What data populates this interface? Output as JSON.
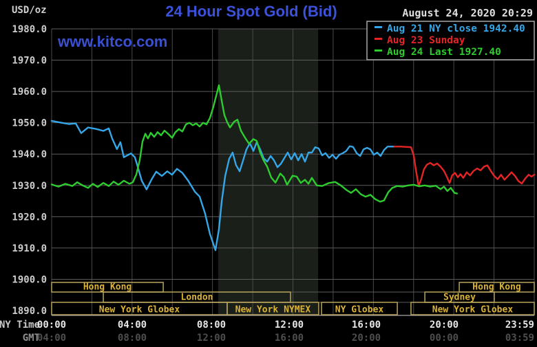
{
  "header": {
    "units_label": "USD/oz",
    "title": "24 Hour Spot Gold (Bid)",
    "datetime": "August 24, 2020 20:29",
    "watermark": "www.kitco.com"
  },
  "legend": {
    "items": [
      {
        "dash_color": "#35a7e8",
        "label": "Aug 21 NY close 1942.40"
      },
      {
        "dash_color": "#e52525",
        "label": "Aug 23 Sunday"
      },
      {
        "dash_color": "#2ecc2e",
        "label": "Aug 24 Last 1927.40"
      }
    ]
  },
  "axes": {
    "ny_time_label": "NY Time",
    "gmt_label": "GMT",
    "y_ticks": [
      "1980.0",
      "1970.0",
      "1960.0",
      "1950.0",
      "1940.0",
      "1930.0",
      "1920.0",
      "1910.0",
      "1900.0",
      "1890.0"
    ],
    "x_ticks": [
      {
        "ny": "00:00",
        "gmt": "04:00",
        "hour": 0
      },
      {
        "ny": "04:00",
        "gmt": "08:00",
        "hour": 4
      },
      {
        "ny": "08:00",
        "gmt": "12:00",
        "hour": 8
      },
      {
        "ny": "12:00",
        "gmt": "16:00",
        "hour": 12
      },
      {
        "ny": "16:00",
        "gmt": "20:00",
        "hour": 16
      },
      {
        "ny": "20:00",
        "gmt": "00:00",
        "hour": 20
      },
      {
        "ny": "23:59",
        "gmt": "03:59",
        "hour": 23.98
      }
    ]
  },
  "sessions": [
    {
      "row": 1,
      "label": "Hong Kong",
      "start_h": 0.0,
      "end_h": 5.55
    },
    {
      "row": 1,
      "label": "Hong Kong",
      "start_h": 20.27,
      "end_h": 24.0
    },
    {
      "row": 2,
      "label": "London",
      "start_h": 2.57,
      "end_h": 11.88
    },
    {
      "row": 2,
      "label": "Sydney",
      "start_h": 18.56,
      "end_h": 22.01
    },
    {
      "row": 3,
      "label": "New York Globex",
      "start_h": 0.0,
      "end_h": 8.73
    },
    {
      "row": 3,
      "label": "New York NYMEX",
      "start_h": 8.73,
      "end_h": 13.28
    },
    {
      "row": 3,
      "label": "NY Globex",
      "start_h": 13.42,
      "end_h": 17.19
    },
    {
      "row": 3,
      "label": "New York Globex",
      "start_h": 17.87,
      "end_h": 24.0
    }
  ],
  "chart_data": {
    "type": "line",
    "title": "24 Hour Spot Gold (Bid)",
    "x_unit": "NY time, hours 0-24",
    "xlim": [
      0,
      24
    ],
    "ylim": [
      1890,
      1980
    ],
    "grid": {
      "x_step_hours": 2,
      "y_step_usd": 10
    },
    "shaded_band_hours": [
      8.28,
      13.25
    ],
    "series": [
      {
        "name": "Aug 21 NY close",
        "close": 1942.4,
        "color": "#35a7e8",
        "points": [
          [
            0,
            1950.6
          ],
          [
            0.5,
            1950.0
          ],
          [
            0.86,
            1949.6
          ],
          [
            1.2,
            1949.8
          ],
          [
            1.47,
            1946.7
          ],
          [
            1.81,
            1948.5
          ],
          [
            2.23,
            1948.0
          ],
          [
            2.57,
            1947.4
          ],
          [
            2.84,
            1948.2
          ],
          [
            3.01,
            1945.0
          ],
          [
            3.25,
            1941.6
          ],
          [
            3.42,
            1943.8
          ],
          [
            3.59,
            1939.0
          ],
          [
            3.94,
            1940.2
          ],
          [
            4.14,
            1939.0
          ],
          [
            4.28,
            1936.0
          ],
          [
            4.48,
            1931.5
          ],
          [
            4.72,
            1928.7
          ],
          [
            4.96,
            1931.8
          ],
          [
            5.2,
            1934.4
          ],
          [
            5.48,
            1933.0
          ],
          [
            5.75,
            1934.5
          ],
          [
            5.99,
            1933.4
          ],
          [
            6.23,
            1935.3
          ],
          [
            6.5,
            1934.0
          ],
          [
            6.78,
            1931.6
          ],
          [
            7.12,
            1928.0
          ],
          [
            7.36,
            1926.4
          ],
          [
            7.63,
            1921.0
          ],
          [
            7.87,
            1914.5
          ],
          [
            8.15,
            1909.3
          ],
          [
            8.32,
            1916.0
          ],
          [
            8.46,
            1925.0
          ],
          [
            8.63,
            1933.0
          ],
          [
            8.83,
            1938.5
          ],
          [
            9.0,
            1940.5
          ],
          [
            9.17,
            1936.5
          ],
          [
            9.35,
            1934.5
          ],
          [
            9.52,
            1938.0
          ],
          [
            9.69,
            1941.5
          ],
          [
            9.86,
            1943.5
          ],
          [
            10.03,
            1941.0
          ],
          [
            10.2,
            1943.8
          ],
          [
            10.37,
            1941.5
          ],
          [
            10.54,
            1938.7
          ],
          [
            10.72,
            1937.6
          ],
          [
            10.89,
            1939.4
          ],
          [
            11.06,
            1938.0
          ],
          [
            11.23,
            1935.8
          ],
          [
            11.4,
            1936.9
          ],
          [
            11.57,
            1938.7
          ],
          [
            11.74,
            1940.5
          ],
          [
            11.91,
            1938.3
          ],
          [
            12.09,
            1940.3
          ],
          [
            12.26,
            1938.0
          ],
          [
            12.43,
            1940.0
          ],
          [
            12.6,
            1937.6
          ],
          [
            12.77,
            1940.5
          ],
          [
            12.94,
            1940.5
          ],
          [
            13.11,
            1942.2
          ],
          [
            13.28,
            1941.8
          ],
          [
            13.45,
            1939.6
          ],
          [
            13.62,
            1940.3
          ],
          [
            13.8,
            1938.8
          ],
          [
            13.97,
            1939.8
          ],
          [
            14.14,
            1938.5
          ],
          [
            14.31,
            1939.8
          ],
          [
            14.48,
            1940.3
          ],
          [
            14.65,
            1941.0
          ],
          [
            14.82,
            1942.5
          ],
          [
            14.99,
            1942.3
          ],
          [
            15.17,
            1940.3
          ],
          [
            15.34,
            1939.4
          ],
          [
            15.51,
            1941.5
          ],
          [
            15.68,
            1942.0
          ],
          [
            15.85,
            1941.5
          ],
          [
            16.02,
            1939.8
          ],
          [
            16.19,
            1940.5
          ],
          [
            16.36,
            1939.4
          ],
          [
            16.53,
            1941.3
          ],
          [
            16.71,
            1942.4
          ],
          [
            16.88,
            1942.4
          ],
          [
            17.05,
            1942.4
          ]
        ]
      },
      {
        "name": "Aug 23 Sunday",
        "color": "#e52525",
        "points": [
          [
            17.05,
            1942.4
          ],
          [
            17.36,
            1942.4
          ],
          [
            17.63,
            1942.3
          ],
          [
            17.87,
            1942.2
          ],
          [
            18.01,
            1939.5
          ],
          [
            18.11,
            1935.0
          ],
          [
            18.25,
            1929.8
          ],
          [
            18.38,
            1932.0
          ],
          [
            18.52,
            1935.2
          ],
          [
            18.66,
            1936.6
          ],
          [
            18.83,
            1937.2
          ],
          [
            19.0,
            1936.4
          ],
          [
            19.17,
            1937.0
          ],
          [
            19.34,
            1936.0
          ],
          [
            19.51,
            1934.6
          ],
          [
            19.65,
            1932.8
          ],
          [
            19.79,
            1930.8
          ],
          [
            19.92,
            1933.2
          ],
          [
            20.06,
            1934.0
          ],
          [
            20.2,
            1932.6
          ],
          [
            20.33,
            1933.6
          ],
          [
            20.47,
            1932.4
          ],
          [
            20.64,
            1934.2
          ],
          [
            20.81,
            1933.2
          ],
          [
            20.98,
            1934.6
          ],
          [
            21.16,
            1935.4
          ],
          [
            21.33,
            1934.8
          ],
          [
            21.5,
            1936.0
          ],
          [
            21.67,
            1936.4
          ],
          [
            21.84,
            1934.6
          ],
          [
            22.01,
            1933.0
          ],
          [
            22.18,
            1932.0
          ],
          [
            22.35,
            1933.4
          ],
          [
            22.52,
            1931.8
          ],
          [
            22.7,
            1933.0
          ],
          [
            22.87,
            1934.2
          ],
          [
            23.04,
            1933.0
          ],
          [
            23.21,
            1931.4
          ],
          [
            23.38,
            1930.6
          ],
          [
            23.55,
            1932.2
          ],
          [
            23.72,
            1933.4
          ],
          [
            23.86,
            1932.8
          ],
          [
            24.0,
            1933.4
          ]
        ]
      },
      {
        "name": "Aug 24",
        "last": 1927.4,
        "color": "#2ecc2e",
        "points": [
          [
            0,
            1930.3
          ],
          [
            0.34,
            1929.6
          ],
          [
            0.68,
            1930.5
          ],
          [
            1.03,
            1929.8
          ],
          [
            1.27,
            1931.0
          ],
          [
            1.54,
            1930.0
          ],
          [
            1.81,
            1929.2
          ],
          [
            2.05,
            1930.5
          ],
          [
            2.29,
            1929.5
          ],
          [
            2.57,
            1930.8
          ],
          [
            2.84,
            1929.8
          ],
          [
            3.08,
            1931.2
          ],
          [
            3.32,
            1930.2
          ],
          [
            3.59,
            1931.5
          ],
          [
            3.87,
            1930.5
          ],
          [
            4.04,
            1931.0
          ],
          [
            4.21,
            1933.5
          ],
          [
            4.38,
            1938.0
          ],
          [
            4.52,
            1944.0
          ],
          [
            4.66,
            1946.5
          ],
          [
            4.79,
            1945.0
          ],
          [
            4.93,
            1946.8
          ],
          [
            5.1,
            1945.5
          ],
          [
            5.27,
            1947.0
          ],
          [
            5.44,
            1946.0
          ],
          [
            5.61,
            1947.5
          ],
          [
            5.79,
            1946.5
          ],
          [
            5.99,
            1945.2
          ],
          [
            6.16,
            1947.0
          ],
          [
            6.33,
            1948.0
          ],
          [
            6.5,
            1947.2
          ],
          [
            6.68,
            1949.5
          ],
          [
            6.85,
            1950.0
          ],
          [
            7.02,
            1949.2
          ],
          [
            7.19,
            1949.8
          ],
          [
            7.36,
            1948.8
          ],
          [
            7.53,
            1950.0
          ],
          [
            7.7,
            1949.5
          ],
          [
            7.87,
            1951.5
          ],
          [
            8.04,
            1955.0
          ],
          [
            8.18,
            1958.5
          ],
          [
            8.32,
            1962.0
          ],
          [
            8.46,
            1957.0
          ],
          [
            8.59,
            1952.5
          ],
          [
            8.73,
            1950.2
          ],
          [
            8.87,
            1948.5
          ],
          [
            9.07,
            1950.3
          ],
          [
            9.24,
            1951.0
          ],
          [
            9.41,
            1947.5
          ],
          [
            9.62,
            1945.2
          ],
          [
            9.82,
            1943.3
          ],
          [
            10.03,
            1944.8
          ],
          [
            10.2,
            1944.2
          ],
          [
            10.37,
            1940.5
          ],
          [
            10.54,
            1938.0
          ],
          [
            10.72,
            1936.0
          ],
          [
            10.92,
            1932.5
          ],
          [
            11.13,
            1930.9
          ],
          [
            11.37,
            1933.8
          ],
          [
            11.54,
            1932.7
          ],
          [
            11.71,
            1930.2
          ],
          [
            11.98,
            1933.1
          ],
          [
            12.19,
            1932.8
          ],
          [
            12.39,
            1930.8
          ],
          [
            12.6,
            1931.8
          ],
          [
            12.77,
            1930.5
          ],
          [
            12.94,
            1932.4
          ],
          [
            13.18,
            1930.0
          ],
          [
            13.45,
            1929.8
          ],
          [
            13.76,
            1930.7
          ],
          [
            14.1,
            1931.1
          ],
          [
            14.38,
            1930.0
          ],
          [
            14.65,
            1928.6
          ],
          [
            14.89,
            1927.6
          ],
          [
            15.13,
            1928.8
          ],
          [
            15.37,
            1927.2
          ],
          [
            15.61,
            1926.4
          ],
          [
            15.85,
            1927.0
          ],
          [
            16.09,
            1925.6
          ],
          [
            16.33,
            1924.8
          ],
          [
            16.53,
            1925.2
          ],
          [
            16.74,
            1927.8
          ],
          [
            16.94,
            1929.2
          ],
          [
            17.18,
            1929.8
          ],
          [
            17.46,
            1929.6
          ],
          [
            17.73,
            1930.0
          ],
          [
            18.01,
            1930.2
          ],
          [
            18.28,
            1929.7
          ],
          [
            18.55,
            1930.0
          ],
          [
            18.83,
            1929.6
          ],
          [
            19.1,
            1929.9
          ],
          [
            19.34,
            1928.8
          ],
          [
            19.51,
            1929.6
          ],
          [
            19.68,
            1928.2
          ],
          [
            19.85,
            1929.2
          ],
          [
            20.03,
            1927.6
          ],
          [
            20.16,
            1927.4
          ]
        ]
      }
    ]
  },
  "colors": {
    "background": "#000000",
    "band": "#1b1f1a",
    "grid_h": "#5c5c5c",
    "grid_v": "#4a4a4a",
    "session_border": "#b9a55e",
    "session_text": "#d9b236",
    "legend_border": "#a8a8a8",
    "tick_ny": "#e6e6e6",
    "tick_gmt": "#4e4e4e",
    "caption_ny": "#c8c8c8",
    "caption_gmt": "#8f8f8f",
    "y_label": "#cccccc",
    "bottom_border": "#8a8a8a"
  }
}
